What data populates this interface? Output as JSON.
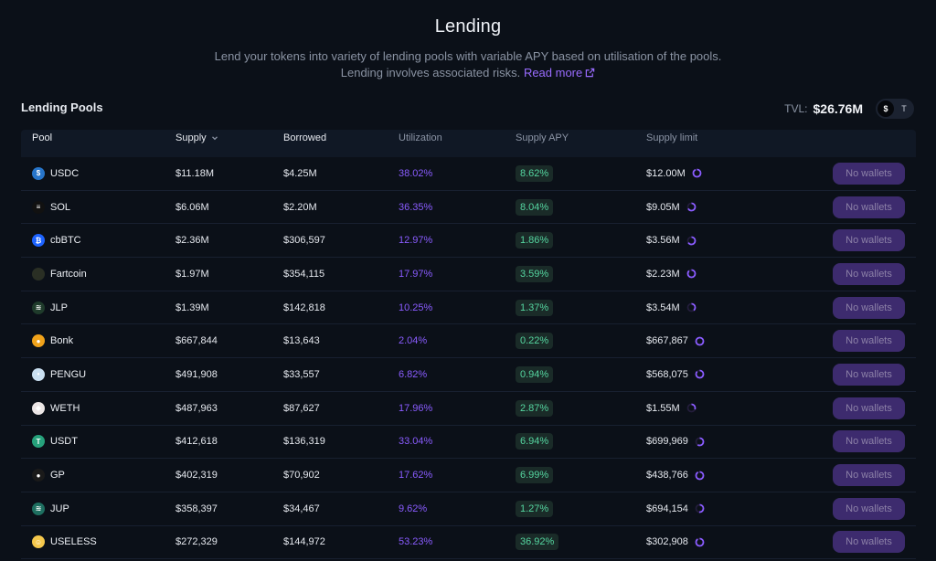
{
  "header": {
    "title": "Lending",
    "subtitle_line1": "Lend your tokens into variety of lending pools with variable APY based on utilisation of the pools.",
    "subtitle_line2": "Lending involves associated risks.",
    "read_more": "Read more"
  },
  "section": {
    "title": "Lending Pools",
    "tvl_label": "TVL:",
    "tvl_value": "$26.76M",
    "toggle_dollar": "$",
    "toggle_token": "T"
  },
  "table": {
    "columns": {
      "pool": "Pool",
      "supply": "Supply",
      "borrowed": "Borrowed",
      "utilization": "Utilization",
      "supply_apy": "Supply APY",
      "supply_limit": "Supply limit"
    },
    "action_label": "No wallets",
    "rows": [
      {
        "pool": "USDC",
        "supply": "$11.18M",
        "borrowed": "$4.25M",
        "utilization": "38.02%",
        "apy": "8.62%",
        "limit": "$12.00M",
        "limit_fraction": 0.93,
        "icon_color": "#2775ca",
        "icon_glyph": "$"
      },
      {
        "pool": "SOL",
        "supply": "$6.06M",
        "borrowed": "$2.20M",
        "utilization": "36.35%",
        "apy": "8.04%",
        "limit": "$9.05M",
        "limit_fraction": 0.67,
        "icon_color": "#111111",
        "icon_glyph": "≡"
      },
      {
        "pool": "cbBTC",
        "supply": "$2.36M",
        "borrowed": "$306,597",
        "utilization": "12.97%",
        "apy": "1.86%",
        "limit": "$3.56M",
        "limit_fraction": 0.66,
        "icon_color": "#1d63ff",
        "icon_glyph": "₿"
      },
      {
        "pool": "Fartcoin",
        "supply": "$1.97M",
        "borrowed": "$354,115",
        "utilization": "17.97%",
        "apy": "3.59%",
        "limit": "$2.23M",
        "limit_fraction": 0.88,
        "icon_color": "#2a2f24",
        "icon_glyph": ""
      },
      {
        "pool": "JLP",
        "supply": "$1.39M",
        "borrowed": "$142,818",
        "utilization": "10.25%",
        "apy": "1.37%",
        "limit": "$3.54M",
        "limit_fraction": 0.39,
        "icon_color": "#1f3b2b",
        "icon_glyph": "≋"
      },
      {
        "pool": "Bonk",
        "supply": "$667,844",
        "borrowed": "$13,643",
        "utilization": "2.04%",
        "apy": "0.22%",
        "limit": "$667,867",
        "limit_fraction": 1.0,
        "icon_color": "#f0a21a",
        "icon_glyph": "●"
      },
      {
        "pool": "PENGU",
        "supply": "$491,908",
        "borrowed": "$33,557",
        "utilization": "6.82%",
        "apy": "0.94%",
        "limit": "$568,075",
        "limit_fraction": 0.87,
        "icon_color": "#c9dff0",
        "icon_glyph": "•"
      },
      {
        "pool": "WETH",
        "supply": "$487,963",
        "borrowed": "$87,627",
        "utilization": "17.96%",
        "apy": "2.87%",
        "limit": "$1.55M",
        "limit_fraction": 0.31,
        "icon_color": "#ece6e6",
        "icon_glyph": "◆"
      },
      {
        "pool": "USDT",
        "supply": "$412,618",
        "borrowed": "$136,319",
        "utilization": "33.04%",
        "apy": "6.94%",
        "limit": "$699,969",
        "limit_fraction": 0.59,
        "icon_color": "#26a17b",
        "icon_glyph": "T"
      },
      {
        "pool": "GP",
        "supply": "$402,319",
        "borrowed": "$70,902",
        "utilization": "17.62%",
        "apy": "6.99%",
        "limit": "$438,766",
        "limit_fraction": 0.92,
        "icon_color": "#1a1a1a",
        "icon_glyph": "●"
      },
      {
        "pool": "JUP",
        "supply": "$358,397",
        "borrowed": "$34,467",
        "utilization": "9.62%",
        "apy": "1.27%",
        "limit": "$694,154",
        "limit_fraction": 0.52,
        "icon_color": "#1e6f60",
        "icon_glyph": "≋"
      },
      {
        "pool": "USELESS",
        "supply": "$272,329",
        "borrowed": "$144,972",
        "utilization": "53.23%",
        "apy": "36.92%",
        "limit": "$302,908",
        "limit_fraction": 0.9,
        "icon_color": "#f5c84c",
        "icon_glyph": "☺"
      }
    ]
  },
  "colors": {
    "background": "#0b1018",
    "accent": "#8a5cff",
    "apy_green": "#55d6a0",
    "button_bg": "#3d2b6e"
  },
  "icons": {
    "external_link": "external-link-icon",
    "sort": "chevron-down-icon",
    "limit_ring": "progress-ring-icon"
  }
}
